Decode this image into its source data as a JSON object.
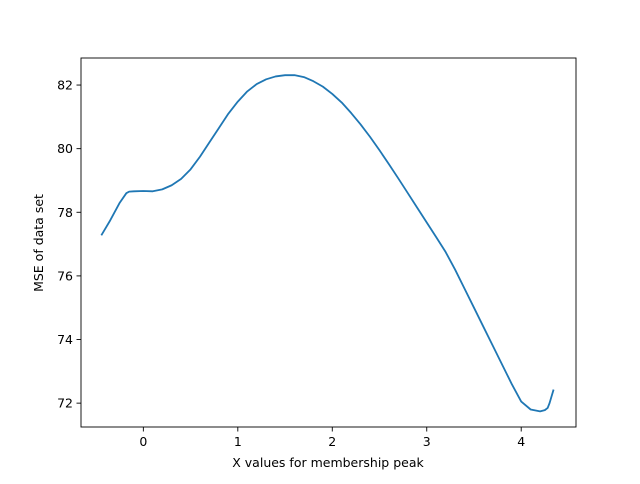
{
  "chart_data": {
    "type": "line",
    "title": "",
    "xlabel": "X values for membership peak",
    "ylabel": "MSE of data set",
    "xlim": [
      -0.66,
      4.58
    ],
    "ylim": [
      71.25,
      82.85
    ],
    "xticks": [
      0,
      1,
      2,
      3,
      4
    ],
    "yticks": [
      72,
      74,
      76,
      78,
      80,
      82
    ],
    "grid": false,
    "legend": "none",
    "series": [
      {
        "color": "#1f77b4",
        "x": [
          -0.44,
          -0.35,
          -0.25,
          -0.18,
          -0.15,
          -0.1,
          0.0,
          0.1,
          0.2,
          0.3,
          0.4,
          0.5,
          0.6,
          0.7,
          0.8,
          0.9,
          1.0,
          1.1,
          1.2,
          1.3,
          1.4,
          1.5,
          1.6,
          1.7,
          1.8,
          1.9,
          2.0,
          2.1,
          2.2,
          2.3,
          2.4,
          2.5,
          2.6,
          2.7,
          2.8,
          2.9,
          3.0,
          3.1,
          3.2,
          3.3,
          3.4,
          3.5,
          3.6,
          3.7,
          3.8,
          3.9,
          4.0,
          4.1,
          4.2,
          4.25,
          4.28,
          4.3,
          4.32,
          4.34
        ],
        "y": [
          77.3,
          77.75,
          78.3,
          78.6,
          78.65,
          78.66,
          78.67,
          78.66,
          78.72,
          78.85,
          79.05,
          79.35,
          79.75,
          80.2,
          80.65,
          81.1,
          81.48,
          81.8,
          82.03,
          82.18,
          82.27,
          82.31,
          82.31,
          82.25,
          82.12,
          81.95,
          81.72,
          81.45,
          81.12,
          80.76,
          80.37,
          79.95,
          79.51,
          79.06,
          78.6,
          78.14,
          77.68,
          77.22,
          76.75,
          76.2,
          75.6,
          75.0,
          74.4,
          73.8,
          73.2,
          72.6,
          72.05,
          71.8,
          71.74,
          71.78,
          71.85,
          72.0,
          72.2,
          72.4
        ]
      }
    ]
  }
}
